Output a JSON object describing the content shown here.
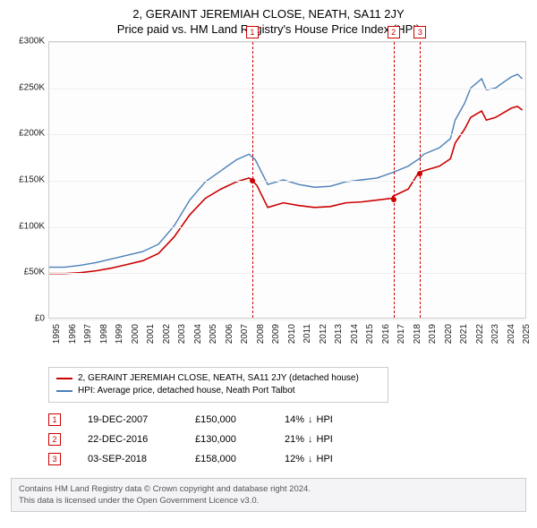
{
  "title": {
    "main": "2, GERAINT JEREMIAH CLOSE, NEATH, SA11 2JY",
    "sub": "Price paid vs. HM Land Registry's House Price Index (HPI)"
  },
  "chart": {
    "type": "line",
    "background_color": "#fdfdfd",
    "border_color": "#cccccf",
    "grid_color": "#eeeeef",
    "text_color": "#222222",
    "x": {
      "min": 1995,
      "max": 2025.5,
      "ticks": [
        1995,
        1996,
        1997,
        1998,
        1999,
        2000,
        2001,
        2002,
        2003,
        2004,
        2005,
        2006,
        2007,
        2008,
        2009,
        2010,
        2011,
        2012,
        2013,
        2014,
        2015,
        2016,
        2017,
        2018,
        2019,
        2020,
        2021,
        2022,
        2023,
        2024,
        2025
      ]
    },
    "y": {
      "min": 0,
      "max": 300000,
      "ticks": [
        0,
        50000,
        100000,
        150000,
        200000,
        250000,
        300000
      ],
      "labels": [
        "£0",
        "£50K",
        "£100K",
        "£150K",
        "£200K",
        "£250K",
        "£300K"
      ],
      "label_fontsize": 10
    },
    "series": [
      {
        "id": "hpi",
        "label": "HPI: Average price, detached house, Neath Port Talbot",
        "color": "#4a7fb8",
        "width": 1.4,
        "points": [
          [
            1995,
            55000
          ],
          [
            1996,
            55000
          ],
          [
            1997,
            57000
          ],
          [
            1998,
            60000
          ],
          [
            1999,
            64000
          ],
          [
            2000,
            68000
          ],
          [
            2001,
            72000
          ],
          [
            2002,
            80000
          ],
          [
            2003,
            100000
          ],
          [
            2004,
            128000
          ],
          [
            2005,
            148000
          ],
          [
            2006,
            160000
          ],
          [
            2007,
            172000
          ],
          [
            2007.8,
            178000
          ],
          [
            2008.2,
            172000
          ],
          [
            2009,
            145000
          ],
          [
            2010,
            150000
          ],
          [
            2011,
            145000
          ],
          [
            2012,
            142000
          ],
          [
            2013,
            143000
          ],
          [
            2014,
            148000
          ],
          [
            2015,
            150000
          ],
          [
            2016,
            152000
          ],
          [
            2017,
            158000
          ],
          [
            2018,
            165000
          ],
          [
            2018.7,
            173000
          ],
          [
            2019,
            178000
          ],
          [
            2020,
            185000
          ],
          [
            2020.7,
            195000
          ],
          [
            2021,
            215000
          ],
          [
            2021.6,
            233000
          ],
          [
            2022,
            250000
          ],
          [
            2022.7,
            260000
          ],
          [
            2023,
            248000
          ],
          [
            2023.6,
            250000
          ],
          [
            2024,
            255000
          ],
          [
            2024.6,
            262000
          ],
          [
            2025,
            265000
          ],
          [
            2025.3,
            260000
          ]
        ]
      },
      {
        "id": "property",
        "label": "2, GERAINT JEREMIAH CLOSE, NEATH, SA11 2JY (detached house)",
        "color": "#cc0000",
        "width": 1.6,
        "points": [
          [
            1995,
            48000
          ],
          [
            1996,
            48000
          ],
          [
            1997,
            49000
          ],
          [
            1998,
            51000
          ],
          [
            1999,
            54000
          ],
          [
            2000,
            58000
          ],
          [
            2001,
            62000
          ],
          [
            2002,
            70000
          ],
          [
            2003,
            88000
          ],
          [
            2004,
            112000
          ],
          [
            2005,
            130000
          ],
          [
            2006,
            140000
          ],
          [
            2007,
            148000
          ],
          [
            2007.8,
            152000
          ],
          [
            2007.96,
            150000
          ],
          [
            2008.3,
            144000
          ],
          [
            2009,
            120000
          ],
          [
            2010,
            125000
          ],
          [
            2011,
            122000
          ],
          [
            2012,
            120000
          ],
          [
            2013,
            121000
          ],
          [
            2014,
            125000
          ],
          [
            2015,
            126000
          ],
          [
            2016,
            128000
          ],
          [
            2016.97,
            130000
          ],
          [
            2017,
            132000
          ],
          [
            2018,
            140000
          ],
          [
            2018.67,
            158000
          ],
          [
            2019,
            160000
          ],
          [
            2020,
            165000
          ],
          [
            2020.7,
            173000
          ],
          [
            2021,
            190000
          ],
          [
            2021.6,
            205000
          ],
          [
            2022,
            218000
          ],
          [
            2022.7,
            225000
          ],
          [
            2023,
            215000
          ],
          [
            2023.6,
            218000
          ],
          [
            2024,
            222000
          ],
          [
            2024.6,
            228000
          ],
          [
            2025,
            230000
          ],
          [
            2025.3,
            226000
          ]
        ]
      }
    ],
    "sale_markers": [
      {
        "n": "1",
        "year": 2007.96,
        "price": 150000,
        "line_color": "#cc0000"
      },
      {
        "n": "2",
        "year": 2016.97,
        "price": 130000,
        "line_color": "#cc0000"
      },
      {
        "n": "3",
        "year": 2018.67,
        "price": 158000,
        "line_color": "#cc0000"
      }
    ]
  },
  "legend": {
    "items": [
      {
        "color": "#cc0000",
        "label": "2, GERAINT JEREMIAH CLOSE, NEATH, SA11 2JY (detached house)"
      },
      {
        "color": "#4a7fb8",
        "label": "HPI: Average price, detached house, Neath Port Talbot"
      }
    ]
  },
  "sales": [
    {
      "n": "1",
      "date": "19-DEC-2007",
      "price": "£150,000",
      "delta_pct": "14%",
      "delta_dir": "down",
      "delta_vs": "HPI"
    },
    {
      "n": "2",
      "date": "22-DEC-2016",
      "price": "£130,000",
      "delta_pct": "21%",
      "delta_dir": "down",
      "delta_vs": "HPI"
    },
    {
      "n": "3",
      "date": "03-SEP-2018",
      "price": "£158,000",
      "delta_pct": "12%",
      "delta_dir": "down",
      "delta_vs": "HPI"
    }
  ],
  "attribution": {
    "l1": "Contains HM Land Registry data © Crown copyright and database right 2024.",
    "l2": "This data is licensed under the Open Government Licence v3.0."
  },
  "colors": {
    "marker_border": "#cc0000",
    "arrow": "#222222"
  }
}
